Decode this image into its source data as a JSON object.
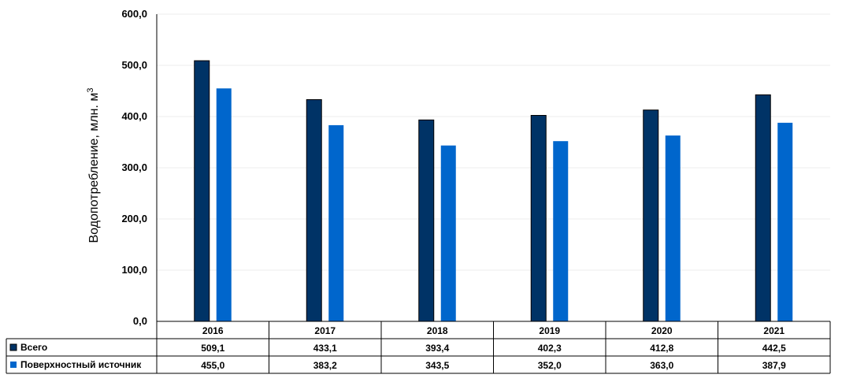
{
  "chart_data": {
    "type": "bar",
    "categories": [
      "2016",
      "2017",
      "2018",
      "2019",
      "2020",
      "2021"
    ],
    "series": [
      {
        "name": "Всего",
        "values": [
          509.1,
          433.1,
          393.4,
          402.3,
          412.8,
          442.5
        ],
        "color": "#003366",
        "labels": [
          "509,1",
          "433,1",
          "393,4",
          "402,3",
          "412,8",
          "442,5"
        ]
      },
      {
        "name": "Поверхностный источник",
        "values": [
          455.0,
          383.2,
          343.5,
          352.0,
          363.0,
          387.9
        ],
        "color": "#0066cc",
        "labels": [
          "455,0",
          "383,2",
          "343,5",
          "352,0",
          "363,0",
          "387,9"
        ]
      }
    ],
    "ylabel": "Водопотребление, млн. м",
    "ylabel_sup": "3",
    "ylim": [
      0,
      600
    ],
    "yticks": [
      "0,0",
      "100,0",
      "200,0",
      "300,0",
      "400,0",
      "500,0",
      "600,0"
    ],
    "ytick_values": [
      0,
      100,
      200,
      300,
      400,
      500,
      600
    ],
    "grid": true,
    "legend": "data-table"
  }
}
